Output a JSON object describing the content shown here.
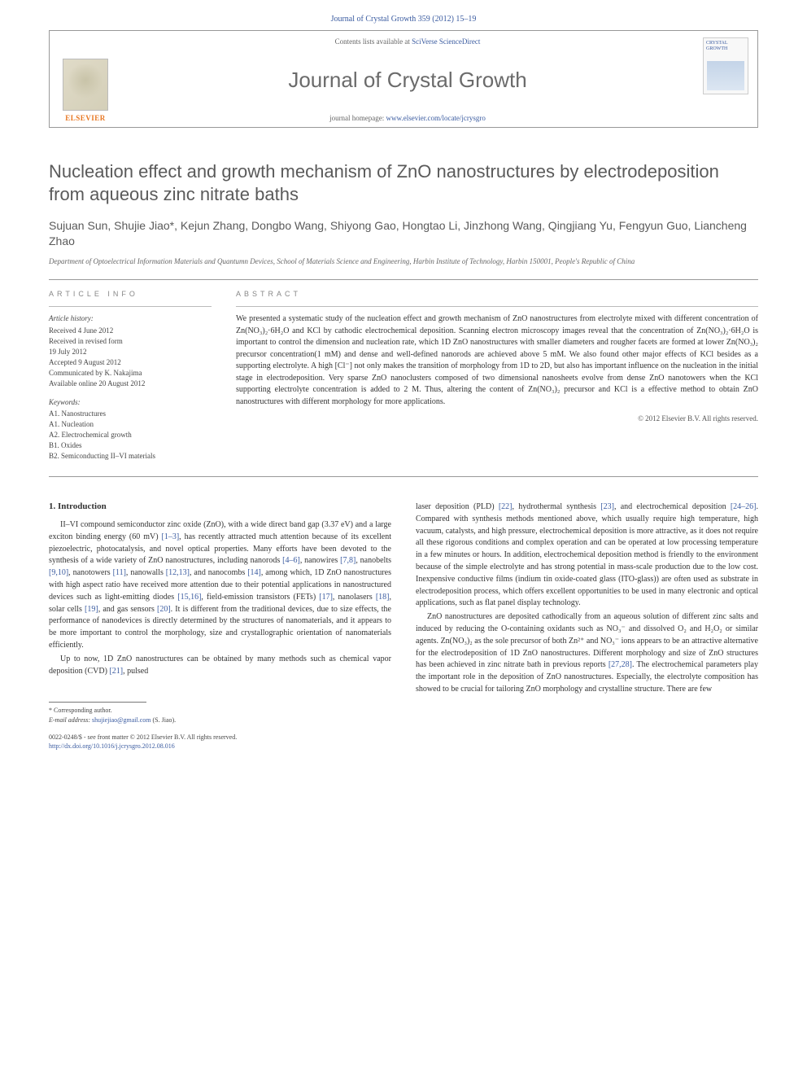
{
  "header": {
    "citation": "Journal of Crystal Growth 359 (2012) 15–19"
  },
  "journalBox": {
    "elsevier": "ELSEVIER",
    "contentsLine": "Contents lists available at ",
    "contentsLink": "SciVerse ScienceDirect",
    "title": "Journal of Crystal Growth",
    "homepageLabel": "journal homepage: ",
    "homepageUrl": "www.elsevier.com/locate/jcrysgro",
    "coverText": "CRYSTAL GROWTH"
  },
  "article": {
    "title": "Nucleation effect and growth mechanism of ZnO nanostructures by electrodeposition from aqueous zinc nitrate baths",
    "authors": "Sujuan Sun, Shujie Jiao*, Kejun Zhang, Dongbo Wang, Shiyong Gao, Hongtao Li, Jinzhong Wang, Qingjiang Yu, Fengyun Guo, Liancheng Zhao",
    "affiliation": "Department of Optoelectrical Information Materials and Quantumn Devices, School of Materials Science and Engineering, Harbin Institute of Technology, Harbin 150001, People's Republic of China"
  },
  "info": {
    "label": "ARTICLE INFO",
    "historyHeading": "Article history:",
    "historyLines": [
      "Received 4 June 2012",
      "Received in revised form",
      "19 July 2012",
      "Accepted 9 August 2012",
      "Communicated by K. Nakajima",
      "Available online 20 August 2012"
    ],
    "keywordsHeading": "Keywords:",
    "keywordsLines": [
      "A1. Nanostructures",
      "A1. Nucleation",
      "A2. Electrochemical growth",
      "B1. Oxides",
      "B2. Semiconducting II–VI materials"
    ]
  },
  "abstract": {
    "label": "ABSTRACT",
    "text": "We presented a systematic study of the nucleation effect and growth mechanism of ZnO nanostructures from electrolyte mixed with different concentration of Zn(NO₃)₂·6H₂O and KCl by cathodic electrochemical deposition. Scanning electron microscopy images reveal that the concentration of Zn(NO₃)₂·6H₂O is important to control the dimension and nucleation rate, which 1D ZnO nanostructures with smaller diameters and rougher facets are formed at lower Zn(NO₃)₂ precursor concentration(1 mM) and dense and well-defined nanorods are achieved above 5 mM. We also found other major effects of KCl besides as a supporting electrolyte. A high [Cl⁻] not only makes the transition of morphology from 1D to 2D, but also has important influence on the nucleation in the initial stage in electrodeposition. Very sparse ZnO nanoclusters composed of two dimensional nanosheets evolve from dense ZnO nanotowers when the KCl supporting electrolyte concentration is added to 2 M. Thus, altering the content of Zn(NO₃)₂ precursor and KCl is a effective method to obtain ZnO nanostructures with different morphology for more applications.",
    "copyright": "© 2012 Elsevier B.V. All rights reserved."
  },
  "body": {
    "introHeading": "1. Introduction",
    "leftParas": [
      "II–VI compound semiconductor zinc oxide (ZnO), with a wide direct band gap (3.37 eV) and a large exciton binding energy (60 mV) [1–3], has recently attracted much attention because of its excellent piezoelectric, photocatalysis, and novel optical properties. Many efforts have been devoted to the synthesis of a wide variety of ZnO nanostructures, including nanorods [4–6], nanowires [7,8], nanobelts [9,10], nanotowers [11], nanowalls [12,13], and nanocombs [14], among which, 1D ZnO nanostructures with high aspect ratio have received more attention due to their potential applications in nanostructured devices such as light-emitting diodes [15,16], field-emission transistors (FETs) [17], nanolasers [18], solar cells [19], and gas sensors [20]. It is different from the traditional devices, due to size effects, the performance of nanodevices is directly determined by the structures of nanomaterials, and it appears to be more important to control the morphology, size and crystallographic orientation of nanomaterials efficiently.",
      "Up to now, 1D ZnO nanostructures can be obtained by many methods such as chemical vapor deposition (CVD) [21], pulsed"
    ],
    "rightParas": [
      "laser deposition (PLD) [22], hydrothermal synthesis [23], and electrochemical deposition [24–26]. Compared with synthesis methods mentioned above, which usually require high temperature, high vacuum, catalysts, and high pressure, electrochemical deposition is more attractive, as it does not require all these rigorous conditions and complex operation and can be operated at low processing temperature in a few minutes or hours. In addition, electrochemical deposition method is friendly to the environment because of the simple electrolyte and has strong potential in mass-scale production due to the low cost. Inexpensive conductive films (indium tin oxide-coated glass (ITO-glass)) are often used as substrate in electrodeposition process, which offers excellent opportunities to be used in many electronic and optical applications, such as flat panel display technology.",
      "ZnO nanostructures are deposited cathodically from an aqueous solution of different zinc salts and induced by reducing the O-containing oxidants such as NO₃⁻ and dissolved O₂ and H₂O₂ or similar agents. Zn(NO₃)₂ as the sole precursor of both Zn²⁺ and NO₃⁻ ions appears to be an attractive alternative for the electrodeposition of 1D ZnO nanostructures. Different morphology and size of ZnO structures has been achieved in zinc nitrate bath in previous reports [27,28]. The electrochemical parameters play the important role in the deposition of ZnO nanostructures. Especially, the electrolyte composition has showed to be crucial for tailoring ZnO morphology and crystalline structure. There are few"
    ]
  },
  "footnote": {
    "corresponding": "* Corresponding author.",
    "emailLabel": "E-mail address: ",
    "email": "shujiejiao@gmail.com",
    "emailAfter": " (S. Jiao)."
  },
  "bottom": {
    "line1": "0022-0248/$ - see front matter © 2012 Elsevier B.V. All rights reserved.",
    "doiLabel": "http://dx.doi.org/",
    "doi": "10.1016/j.jcrysgro.2012.08.016"
  },
  "colors": {
    "linkBlue": "#3a5ba0",
    "elsevierOrange": "#e87722",
    "bodyText": "#333333",
    "mutedText": "#666666",
    "headingGray": "#5a5a5a",
    "ruleGray": "#999999"
  },
  "layout": {
    "pageWidth": 992,
    "pageHeight": 1323,
    "sideMargin": 60,
    "columnGap": 30,
    "journalBoxHeight": 120
  },
  "typography": {
    "titleFontSize": 22,
    "authorsFontSize": 14,
    "bodyFontSize": 10,
    "abstractFontSize": 10,
    "infoFontSize": 9,
    "footnoteFontSize": 8,
    "serifFamily": "Georgia, Times New Roman, serif",
    "sansFamily": "Gill Sans, Trebuchet MS, Arial, sans-serif"
  }
}
